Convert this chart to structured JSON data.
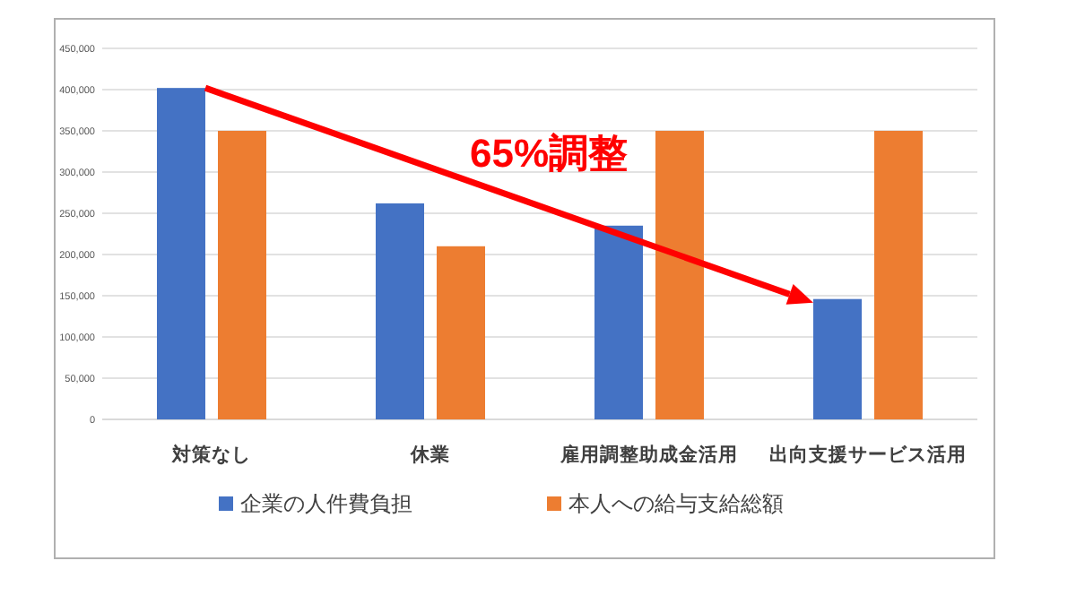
{
  "chart_data": {
    "type": "bar",
    "categories": [
      "対策なし",
      "休業",
      "雇用調整助成金活用",
      "出向支援サービス活用"
    ],
    "series": [
      {
        "name": "企業の人件費負担",
        "color": "#4472c4",
        "values": [
          402000,
          262000,
          235000,
          146000
        ]
      },
      {
        "name": "本人への給与支給総額",
        "color": "#ed7d31",
        "values": [
          350000,
          210000,
          350000,
          350000
        ]
      }
    ],
    "ylim": [
      0,
      450000
    ],
    "yticks": [
      {
        "value": 0,
        "label": "0"
      },
      {
        "value": 50000,
        "label": "50,000"
      },
      {
        "value": 100000,
        "label": "100,000"
      },
      {
        "value": 150000,
        "label": "150,000"
      },
      {
        "value": 200000,
        "label": "200,000"
      },
      {
        "value": 250000,
        "label": "250,000"
      },
      {
        "value": 300000,
        "label": "300,000"
      },
      {
        "value": 350000,
        "label": "350,000"
      },
      {
        "value": 400000,
        "label": "400,000"
      },
      {
        "value": 450000,
        "label": "450,000"
      }
    ],
    "grid": "y",
    "legend": "bottom",
    "annotations": [
      "65%調整"
    ]
  }
}
